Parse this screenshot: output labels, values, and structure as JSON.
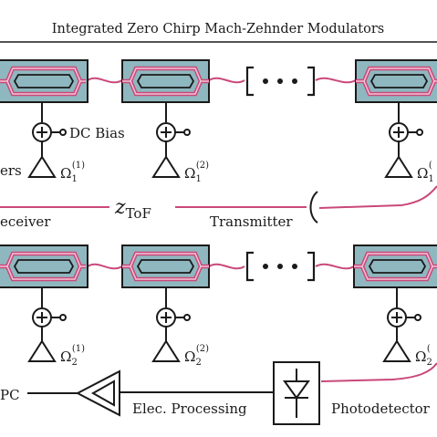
{
  "title": "Integrated Zero Chirp Mach-Zehnder Modulators",
  "labels": {
    "dc_bias": "DC Bias",
    "amplifiers_partial": "ers",
    "receiver_partial": "eceiver",
    "transmitter": "Transmitter",
    "tof_symbol": "z",
    "tof_subscript": "ToF",
    "adc_partial": "PC",
    "elec_processing": "Elec. Processing",
    "photodetector_partial": "Photodetector"
  },
  "ellipsis": "[• • •]",
  "drive": {
    "symbol": "Ω",
    "row1": {
      "sub": "1",
      "sups": [
        "(1)",
        "(2)",
        "("
      ]
    },
    "row2": {
      "sub": "2",
      "sups": [
        "(1)",
        "(2)",
        "("
      ]
    }
  },
  "colors": {
    "modulator_fill": "#8fb7bf",
    "waveguide": "#c9487a",
    "stroke": "#1a1a1a"
  }
}
